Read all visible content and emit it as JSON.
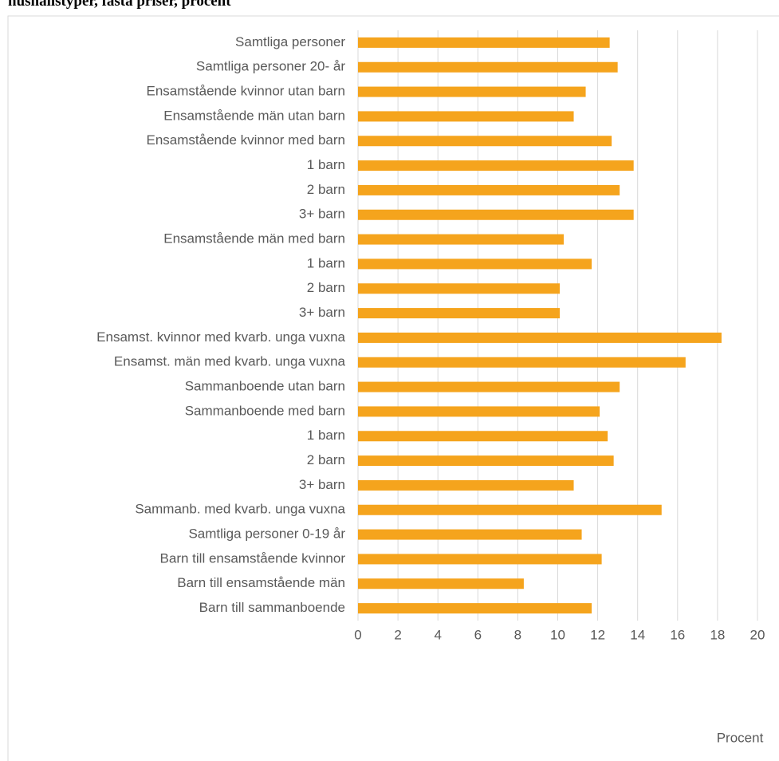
{
  "chart_data": {
    "type": "bar",
    "orientation": "horizontal",
    "title": "hushållstyper, fasta priser, procent",
    "xlabel": "Procent",
    "categories": [
      "Samtliga personer",
      "Samtliga personer 20- år",
      "Ensamstående kvinnor utan barn",
      "Ensamstående män utan barn",
      "Ensamstående kvinnor med barn",
      "1 barn",
      "2 barn",
      "3+ barn",
      "Ensamstående män med barn",
      "1 barn",
      "2 barn",
      "3+ barn",
      "Ensamst. kvinnor med kvarb. unga vuxna",
      "Ensamst. män med kvarb. unga vuxna",
      "Sammanboende utan barn",
      "Sammanboende med barn",
      "1 barn",
      "2 barn",
      "3+ barn",
      "Sammanb. med kvarb. unga vuxna",
      "Samtliga personer 0-19 år",
      "Barn till ensamstående kvinnor",
      "Barn till ensamstående män",
      "Barn till sammanboende"
    ],
    "values": [
      12.6,
      13.0,
      11.4,
      10.8,
      12.7,
      13.8,
      13.1,
      13.8,
      10.3,
      11.7,
      10.1,
      10.1,
      18.2,
      16.4,
      13.1,
      12.1,
      12.5,
      12.8,
      10.8,
      15.2,
      11.2,
      12.2,
      8.3,
      11.7
    ],
    "color": "#f5a41d",
    "xlim": [
      0,
      20
    ],
    "xticks": [
      0,
      2,
      4,
      6,
      8,
      10,
      12,
      14,
      16,
      18,
      20
    ],
    "grid": true
  }
}
